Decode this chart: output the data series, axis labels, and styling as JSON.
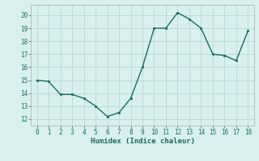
{
  "x": [
    0,
    1,
    2,
    3,
    4,
    5,
    6,
    7,
    8,
    9,
    10,
    11,
    12,
    13,
    14,
    15,
    16,
    17,
    18
  ],
  "y": [
    15.0,
    14.9,
    13.9,
    13.9,
    13.6,
    13.0,
    12.2,
    12.5,
    13.6,
    16.0,
    19.0,
    19.0,
    20.2,
    19.7,
    19.0,
    17.0,
    16.9,
    16.5,
    18.8
  ],
  "line_color": "#1a6b5e",
  "marker_color": "#1a6b5e",
  "bg_color": "#d9f0ef",
  "grid_color": "#b8d8d5",
  "xlabel": "Humidex (Indice chaleur)",
  "ylim": [
    11.5,
    20.8
  ],
  "xlim": [
    -0.5,
    18.5
  ],
  "yticks": [
    12,
    13,
    14,
    15,
    16,
    17,
    18,
    19,
    20
  ],
  "xticks": [
    0,
    1,
    2,
    3,
    4,
    5,
    6,
    7,
    8,
    9,
    10,
    11,
    12,
    13,
    14,
    15,
    16,
    17,
    18
  ]
}
